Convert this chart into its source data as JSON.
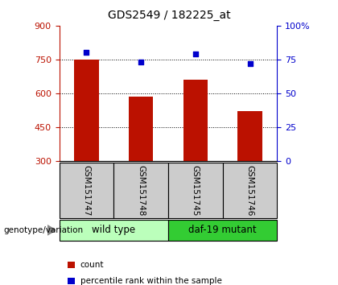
{
  "title": "GDS2549 / 182225_at",
  "samples": [
    "GSM151747",
    "GSM151748",
    "GSM151745",
    "GSM151746"
  ],
  "counts": [
    750,
    585,
    660,
    520
  ],
  "percentiles": [
    80,
    73,
    79,
    72
  ],
  "ylim_left": [
    300,
    900
  ],
  "ylim_right": [
    0,
    100
  ],
  "yticks_left": [
    300,
    450,
    600,
    750,
    900
  ],
  "yticks_right": [
    0,
    25,
    50,
    75,
    100
  ],
  "ytick_labels_right": [
    "0",
    "25",
    "50",
    "75",
    "100%"
  ],
  "bar_color": "#bb1100",
  "dot_color": "#0000cc",
  "bar_width": 0.45,
  "groups": [
    {
      "label": "wild type",
      "indices": [
        0,
        1
      ],
      "color": "#bbffbb"
    },
    {
      "label": "daf-19 mutant",
      "indices": [
        2,
        3
      ],
      "color": "#33cc33"
    }
  ],
  "genotype_label": "genotype/variation",
  "legend_items": [
    {
      "color": "#bb1100",
      "label": "count"
    },
    {
      "color": "#0000cc",
      "label": "percentile rank within the sample"
    }
  ],
  "title_fontsize": 10,
  "tick_fontsize": 8,
  "background_color": "#ffffff",
  "xlabel_area_color": "#cccccc"
}
